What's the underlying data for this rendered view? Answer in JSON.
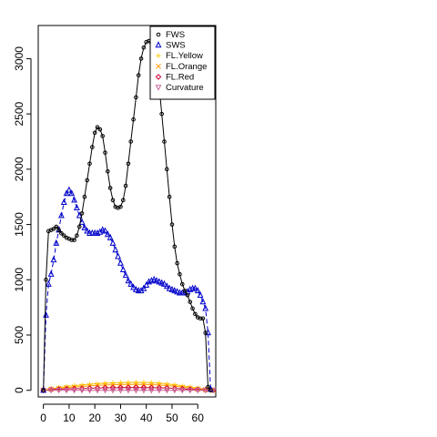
{
  "chart_data": {
    "type": "line",
    "title": "",
    "xlabel": "",
    "ylabel": "",
    "xlim": [
      -2,
      67
    ],
    "ylim": [
      -60,
      3300
    ],
    "xticks": [
      0,
      10,
      20,
      30,
      40,
      50,
      60
    ],
    "yticks": [
      0,
      500,
      1000,
      1500,
      2000,
      2500,
      3000
    ],
    "legend_position": "top-right",
    "grid": false,
    "series": [
      {
        "name": "FWS",
        "color": "#000000",
        "marker": "circle",
        "x": [
          0,
          1,
          2,
          3,
          4,
          5,
          6,
          7,
          8,
          9,
          10,
          11,
          12,
          13,
          14,
          15,
          16,
          17,
          18,
          19,
          20,
          21,
          22,
          23,
          24,
          25,
          26,
          27,
          28,
          29,
          30,
          31,
          32,
          33,
          34,
          35,
          36,
          37,
          38,
          39,
          40,
          41,
          42,
          43,
          44,
          45,
          46,
          47,
          48,
          49,
          50,
          51,
          52,
          53,
          54,
          55,
          56,
          57,
          58,
          59,
          60,
          61,
          62,
          63,
          64,
          65
        ],
        "values": [
          0,
          1000,
          1440,
          1450,
          1460,
          1480,
          1450,
          1420,
          1400,
          1380,
          1370,
          1360,
          1360,
          1400,
          1480,
          1600,
          1750,
          1900,
          2050,
          2200,
          2330,
          2380,
          2360,
          2300,
          2150,
          1980,
          1830,
          1720,
          1660,
          1650,
          1660,
          1720,
          1850,
          2050,
          2250,
          2450,
          2650,
          2850,
          3000,
          3100,
          3150,
          3160,
          3140,
          3080,
          2950,
          2750,
          2500,
          2250,
          2000,
          1750,
          1500,
          1300,
          1150,
          1050,
          960,
          900,
          860,
          800,
          740,
          690,
          660,
          650,
          650,
          520,
          30,
          0
        ]
      },
      {
        "name": "SWS",
        "color": "#0000cc",
        "marker": "triangle",
        "x": [
          0,
          1,
          2,
          3,
          4,
          5,
          6,
          7,
          8,
          9,
          10,
          11,
          12,
          13,
          14,
          15,
          16,
          17,
          18,
          19,
          20,
          21,
          22,
          23,
          24,
          25,
          26,
          27,
          28,
          29,
          30,
          31,
          32,
          33,
          34,
          35,
          36,
          37,
          38,
          39,
          40,
          41,
          42,
          43,
          44,
          45,
          46,
          47,
          48,
          49,
          50,
          51,
          52,
          53,
          54,
          55,
          56,
          57,
          58,
          59,
          60,
          61,
          62,
          63,
          64,
          65
        ],
        "values": [
          0,
          680,
          960,
          1050,
          1180,
          1330,
          1450,
          1580,
          1700,
          1780,
          1810,
          1780,
          1720,
          1650,
          1580,
          1520,
          1470,
          1440,
          1420,
          1420,
          1420,
          1420,
          1430,
          1450,
          1440,
          1410,
          1380,
          1330,
          1270,
          1210,
          1150,
          1090,
          1040,
          990,
          960,
          930,
          910,
          900,
          900,
          920,
          950,
          980,
          990,
          1000,
          990,
          980,
          970,
          960,
          940,
          920,
          910,
          900,
          890,
          880,
          880,
          880,
          890,
          910,
          920,
          920,
          900,
          860,
          800,
          740,
          520,
          10
        ]
      },
      {
        "name": "FL.Yellow",
        "color": "#ffcc00",
        "marker": "plus",
        "x": [
          0,
          3,
          6,
          9,
          12,
          15,
          18,
          21,
          24,
          27,
          30,
          33,
          36,
          39,
          42,
          45,
          48,
          51,
          54,
          57,
          60,
          63,
          66
        ],
        "values": [
          0,
          15,
          25,
          35,
          42,
          48,
          55,
          60,
          65,
          68,
          70,
          72,
          73,
          72,
          70,
          65,
          58,
          50,
          40,
          30,
          20,
          10,
          0
        ]
      },
      {
        "name": "FL.Orange",
        "color": "#ff9900",
        "marker": "x",
        "x": [
          0,
          3,
          6,
          9,
          12,
          15,
          18,
          21,
          24,
          27,
          30,
          33,
          36,
          39,
          42,
          45,
          48,
          51,
          54,
          57,
          60,
          63,
          66
        ],
        "values": [
          0,
          10,
          18,
          25,
          30,
          35,
          40,
          45,
          48,
          50,
          52,
          53,
          54,
          53,
          51,
          48,
          43,
          36,
          28,
          20,
          12,
          6,
          0
        ]
      },
      {
        "name": "FL.Red",
        "color": "#cc0033",
        "marker": "diamond",
        "x": [
          0,
          3,
          6,
          9,
          12,
          15,
          18,
          21,
          24,
          27,
          30,
          33,
          36,
          39,
          42,
          45,
          48,
          51,
          54,
          57,
          60,
          63,
          66
        ],
        "values": [
          0,
          5,
          10,
          12,
          14,
          16,
          18,
          20,
          22,
          23,
          24,
          25,
          25,
          24,
          23,
          22,
          20,
          17,
          13,
          9,
          6,
          3,
          0
        ]
      },
      {
        "name": "Curvature",
        "color": "#cc6699",
        "marker": "triangle-down",
        "x": [
          0,
          3,
          6,
          9,
          12,
          15,
          18,
          21,
          24,
          27,
          30,
          33,
          36,
          39,
          42,
          45,
          48,
          51,
          54,
          57,
          60,
          63,
          66
        ],
        "values": [
          0,
          0,
          0,
          0,
          0,
          0,
          0,
          0,
          0,
          0,
          0,
          0,
          0,
          0,
          0,
          0,
          0,
          0,
          0,
          0,
          0,
          0,
          0
        ]
      }
    ]
  }
}
